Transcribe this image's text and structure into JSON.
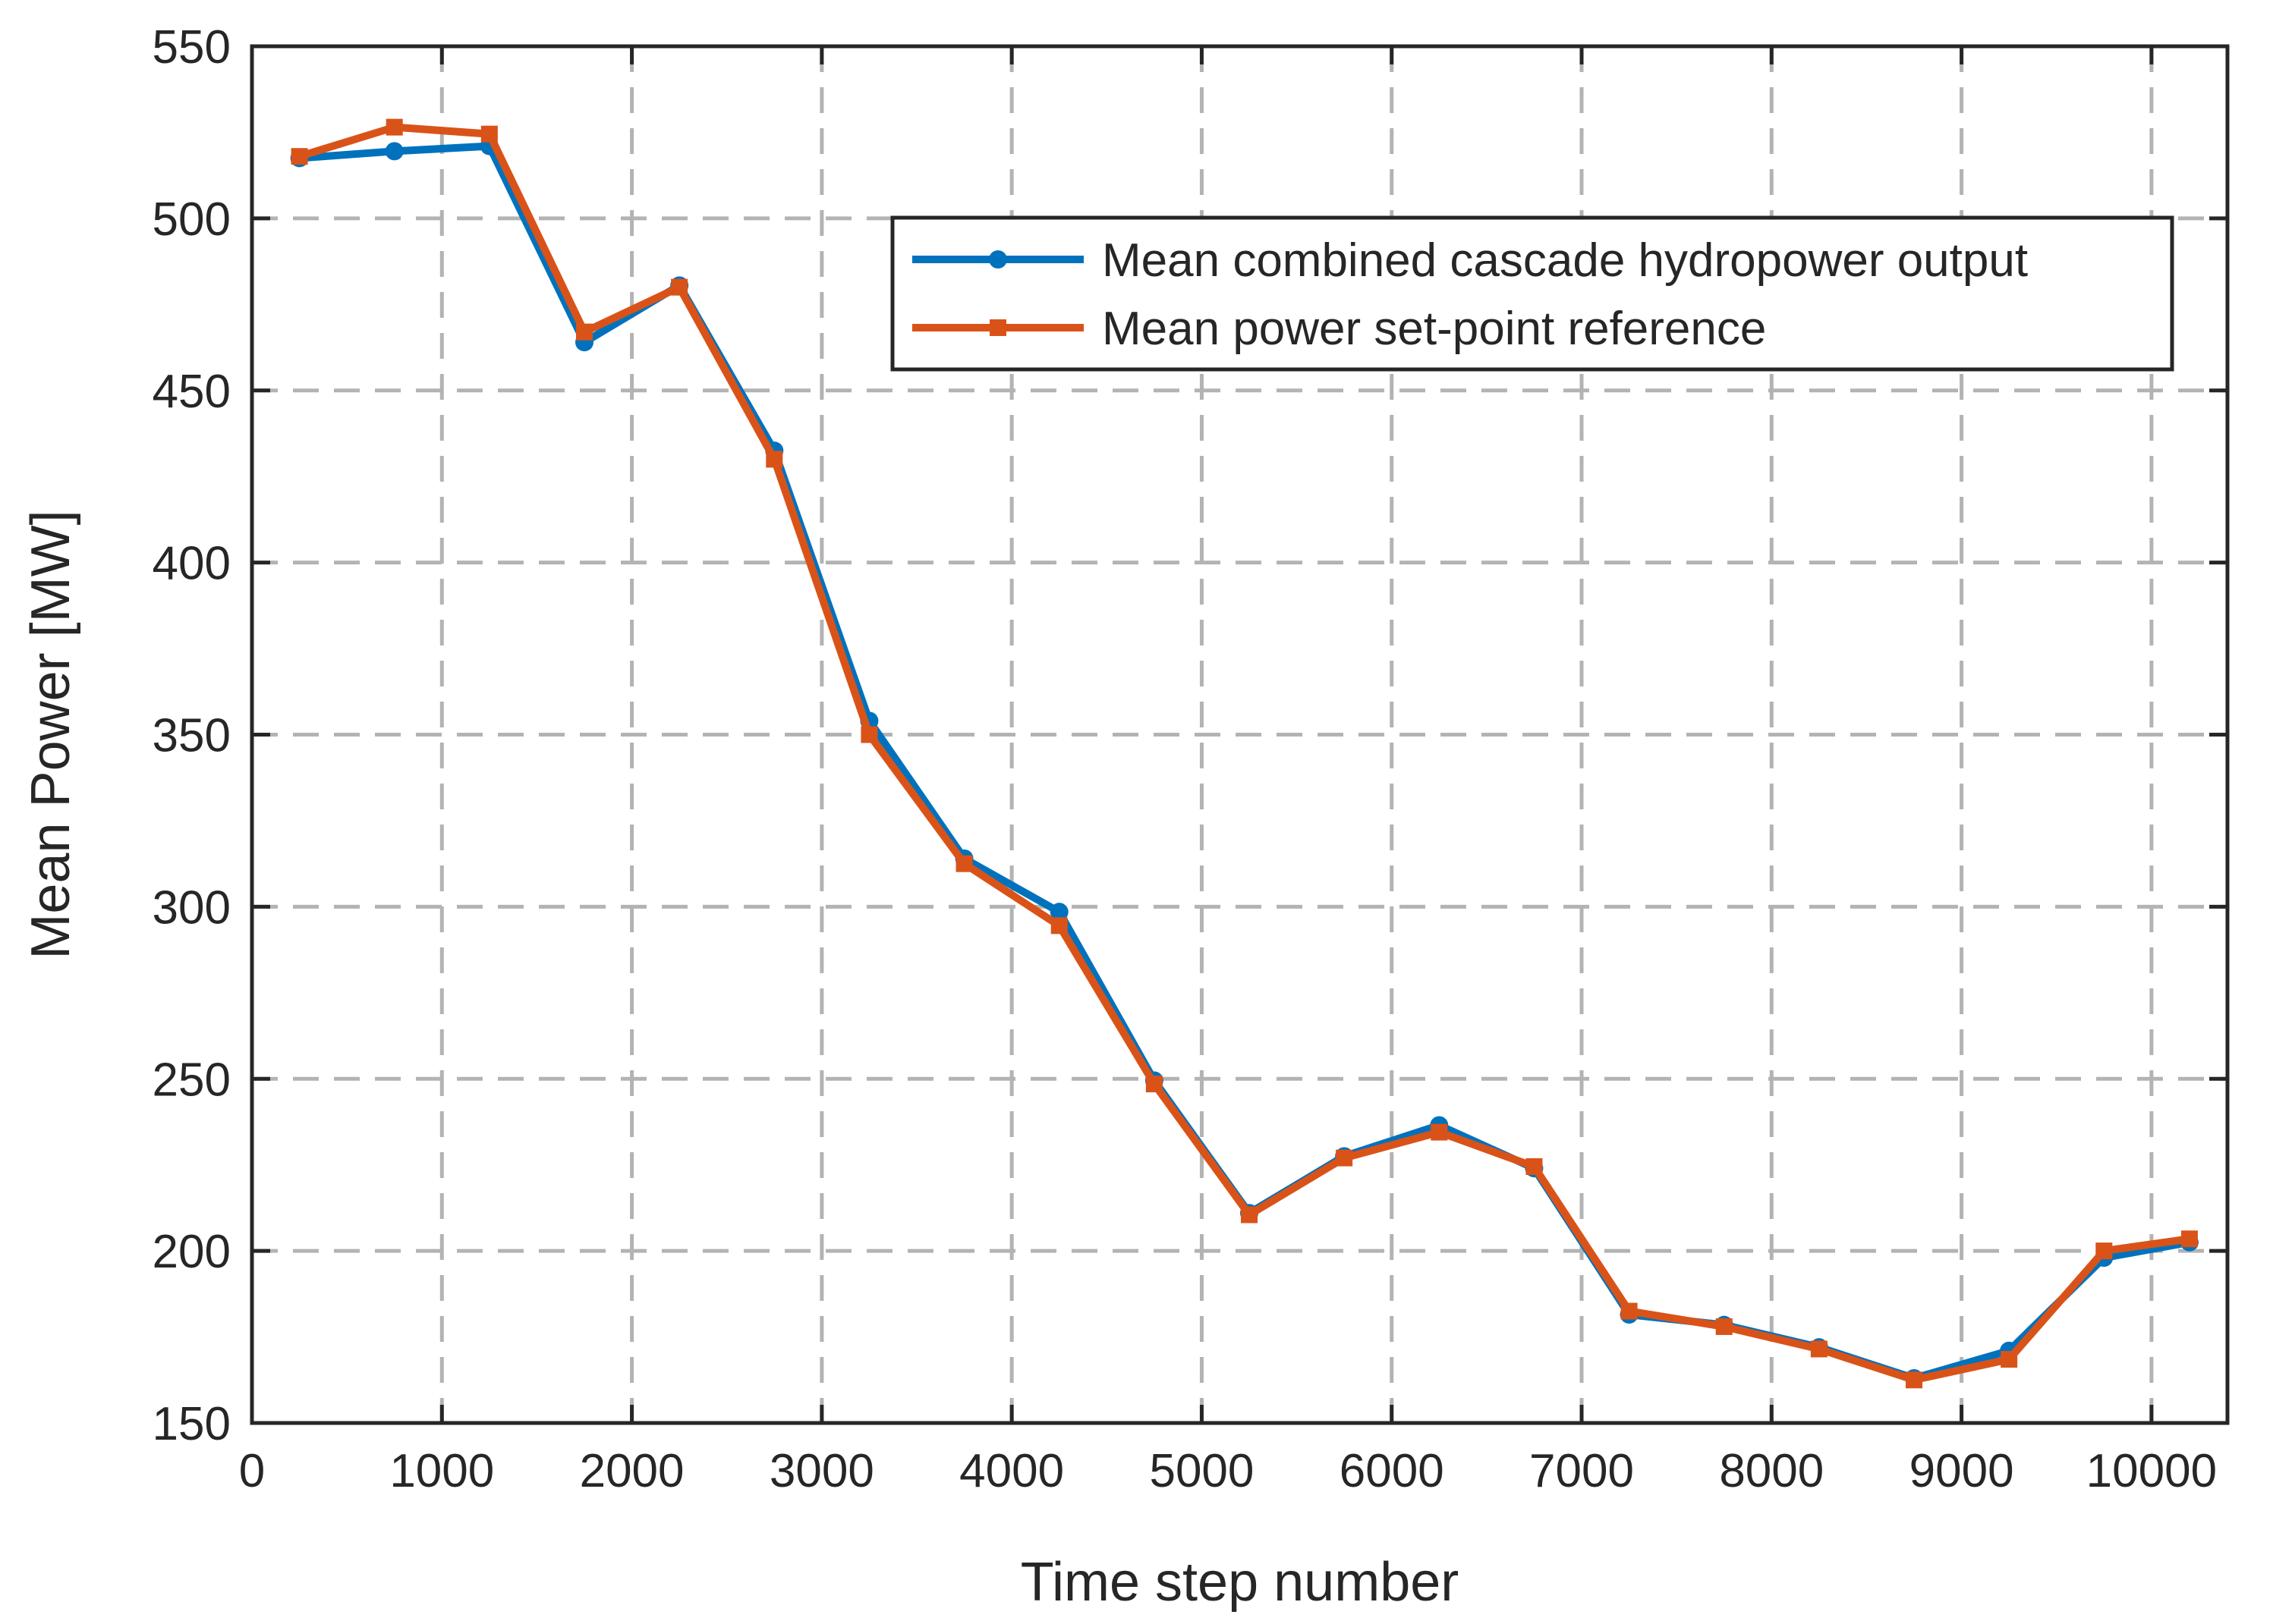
{
  "chart_data": {
    "type": "line",
    "title": "",
    "xlabel": "Time step number",
    "ylabel": "Mean Power [MW]",
    "xlim": [
      0,
      10400
    ],
    "ylim": [
      150,
      550
    ],
    "xticks": [
      0,
      1000,
      2000,
      3000,
      4000,
      5000,
      6000,
      7000,
      8000,
      9000,
      10000
    ],
    "yticks": [
      150,
      200,
      250,
      300,
      350,
      400,
      450,
      500,
      550
    ],
    "grid": true,
    "grid_style": "dashed",
    "legend_position": "top-right",
    "x": [
      250,
      750,
      1250,
      1750,
      2250,
      2750,
      3250,
      3750,
      4250,
      4750,
      5250,
      5750,
      6250,
      6750,
      7250,
      7750,
      8250,
      8750,
      9250,
      9750,
      10200
    ],
    "series": [
      {
        "name": "Mean combined cascade hydropower output",
        "color": "#0072BD",
        "marker": "circle",
        "values": [
          517.5,
          519.5,
          521,
          464,
          480.5,
          432.5,
          354,
          314,
          298.5,
          249.5,
          211,
          227.5,
          236.5,
          224,
          181.5,
          178.5,
          172,
          163,
          171,
          198,
          202.5
        ]
      },
      {
        "name": "Mean power set-point reference",
        "color": "#D95319",
        "marker": "square",
        "values": [
          518,
          526.5,
          524.5,
          467,
          480,
          430,
          350,
          312.5,
          294.5,
          248.5,
          210.5,
          227,
          234.5,
          224.5,
          182.5,
          178,
          171.5,
          162.5,
          168.5,
          200,
          203.5
        ]
      }
    ]
  }
}
